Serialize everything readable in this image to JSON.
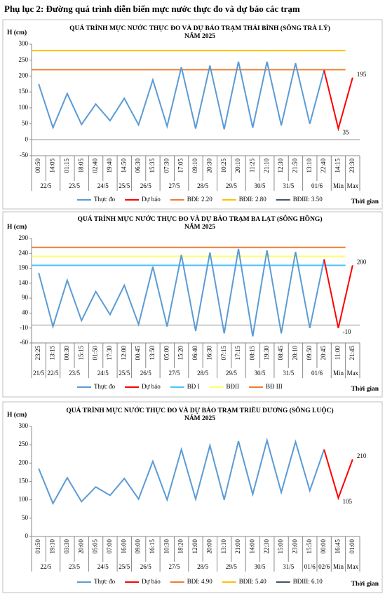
{
  "page_title": "Phụ lục 2: Đường quá trình diễn biến mực nước thực đo và dự báo các trạm",
  "chart_data": [
    {
      "type": "line",
      "title": [
        "QUÁ TRÌNH MỰC NƯỚC THỰC ĐO VÀ DỰ BÁO TRẠM THÁI BÌNH (SÔNG TRÀ LÝ)",
        "NĂM 2025"
      ],
      "y_label": "H (cm)",
      "x_label": "Thời gian",
      "categories": [
        "00:50",
        "14:05",
        "01:15",
        "18:05",
        "02:40",
        "19:40",
        "14:50",
        "06:30",
        "15:35",
        "07:30",
        "17:05",
        "09:10",
        "20:30",
        "10:25",
        "20:10",
        "11:25",
        "21:10",
        "12:30",
        "21:50",
        "13:10",
        "22:40",
        "14:15",
        "23:30"
      ],
      "dates": [
        "22/5",
        null,
        "23/5",
        null,
        "24/5",
        null,
        "25/5",
        "26/5",
        null,
        "27/5",
        null,
        "28/5",
        null,
        "29/5",
        null,
        "30/5",
        null,
        "31/5",
        null,
        "01/6",
        null,
        "Min",
        "Max"
      ],
      "ylim": [
        -50,
        300
      ],
      "yticks": [
        -50,
        0,
        50,
        100,
        150,
        200,
        250,
        300
      ],
      "grid": false,
      "series": [
        {
          "name": "Thực đo",
          "color": "#5b9bd5",
          "values": [
            175,
            38,
            145,
            48,
            112,
            60,
            130,
            47,
            188,
            42,
            228,
            35,
            233,
            33,
            245,
            38,
            245,
            45,
            240,
            50,
            218,
            null,
            null
          ]
        },
        {
          "name": "Dự báo",
          "color": "#ff0000",
          "values": [
            null,
            null,
            null,
            null,
            null,
            null,
            null,
            null,
            null,
            null,
            null,
            null,
            null,
            null,
            null,
            null,
            null,
            null,
            null,
            null,
            218,
            35,
            195
          ],
          "value_labels": [
            null,
            null,
            null,
            null,
            null,
            null,
            null,
            null,
            null,
            null,
            null,
            null,
            null,
            null,
            null,
            null,
            null,
            null,
            null,
            null,
            null,
            "35",
            "195"
          ]
        }
      ],
      "thresholds": [
        {
          "name": "BĐI: 2.20",
          "color": "#ed7d31",
          "value": 220
        },
        {
          "name": "BĐII: 2.80",
          "color": "#ffc000",
          "value": 280
        },
        {
          "name": "BĐIII: 3.50",
          "color": "#44546a",
          "value": 350
        }
      ]
    },
    {
      "type": "line",
      "title": [
        "QUÁ TRÌNH MỰC NƯỚC THỰC ĐO VÀ DỰ BÁO TRẠM BA LẠT (SÔNG HỒNG)",
        "NĂM 2025"
      ],
      "y_label": "H (cm)",
      "x_label": "Thời gian",
      "categories": [
        "23:25",
        "13:15",
        "00:30",
        "15:15",
        "01:50",
        "17:30",
        "12:00",
        "00:45",
        "13:50",
        "05:00",
        "15:20",
        "06:40",
        "16:30",
        "07:15",
        "17:15",
        "08:15",
        "19:30",
        "08:45",
        "20:10",
        "09:50",
        "20:45",
        "11:00",
        "21:45"
      ],
      "dates": [
        "21/5",
        "22/5",
        "23/5",
        null,
        "24/5",
        null,
        "25/5",
        "26/5",
        null,
        "27/5",
        null,
        "28/5",
        null,
        "29/5",
        null,
        "30/5",
        null,
        "31/5",
        null,
        "01/6",
        null,
        "Min",
        "Max"
      ],
      "ylim": [
        -60,
        290
      ],
      "yticks": [
        -60,
        -10,
        40,
        90,
        140,
        190,
        240,
        290
      ],
      "grid": false,
      "series": [
        {
          "name": "Thực đo",
          "color": "#5b9bd5",
          "values": [
            175,
            -5,
            150,
            15,
            112,
            35,
            133,
            2,
            195,
            -5,
            235,
            -20,
            243,
            -28,
            255,
            -38,
            250,
            -28,
            245,
            -10,
            220,
            null,
            null
          ]
        },
        {
          "name": "Dự báo",
          "color": "#ff0000",
          "values": [
            null,
            null,
            null,
            null,
            null,
            null,
            null,
            null,
            null,
            null,
            null,
            null,
            null,
            null,
            null,
            null,
            null,
            null,
            null,
            null,
            220,
            -10,
            200
          ],
          "value_labels": [
            null,
            null,
            null,
            null,
            null,
            null,
            null,
            null,
            null,
            null,
            null,
            null,
            null,
            null,
            null,
            null,
            null,
            null,
            null,
            null,
            null,
            "-10",
            "200"
          ]
        }
      ],
      "thresholds": [
        {
          "name": "BĐ I",
          "color": "#4fc3f7",
          "value": 200
        },
        {
          "name": "BĐII",
          "color": "#ffff66",
          "value": 230
        },
        {
          "name": "BĐ III",
          "color": "#ed7d31",
          "value": 260
        }
      ]
    },
    {
      "type": "line",
      "title": [
        "QUÁ TRÌNH MỰC NƯỚC THỰC ĐO VÀ DỰ BÁO TRẠM TRIỀU DƯƠNG  (SÔNG LUỘC)",
        "NĂM 2025"
      ],
      "y_label": "H (cm)",
      "x_label": "Thời gian",
      "categories": [
        "01:50",
        "19:10",
        "03:30",
        "20:00",
        "05:05",
        "07:00",
        "16:00",
        "09:00",
        "16:15",
        "10:30",
        "18:20",
        "12:00",
        "20:00",
        "13:10",
        "21:00",
        "14:00",
        "22:30",
        "15:00",
        "23:00",
        "15:50",
        "00:00",
        "16:45",
        "01:00"
      ],
      "dates": [
        "22/5",
        null,
        "23/5",
        null,
        "24/5",
        null,
        "25/5",
        "26/5",
        null,
        "27/5",
        null,
        "28/5",
        null,
        "29/5",
        null,
        "30/5",
        null,
        "31/5",
        null,
        "01/6",
        "02/6",
        "Min",
        "Max"
      ],
      "ylim": [
        0,
        300
      ],
      "yticks": [
        0,
        50,
        100,
        150,
        200,
        250,
        300
      ],
      "grid": false,
      "series": [
        {
          "name": "Thực đo",
          "color": "#5b9bd5",
          "values": [
            185,
            90,
            160,
            95,
            135,
            112,
            158,
            102,
            205,
            100,
            237,
            102,
            248,
            100,
            260,
            115,
            262,
            120,
            258,
            125,
            237,
            null,
            null
          ]
        },
        {
          "name": "Dự báo",
          "color": "#ff0000",
          "values": [
            null,
            null,
            null,
            null,
            null,
            null,
            null,
            null,
            null,
            null,
            null,
            null,
            null,
            null,
            null,
            null,
            null,
            null,
            null,
            null,
            237,
            105,
            210
          ],
          "value_labels": [
            null,
            null,
            null,
            null,
            null,
            null,
            null,
            null,
            null,
            null,
            null,
            null,
            null,
            null,
            null,
            null,
            null,
            null,
            null,
            null,
            null,
            "105",
            "210"
          ]
        }
      ],
      "thresholds": [
        {
          "name": "BĐI: 4.90",
          "color": "#ed7d31",
          "value": 490
        },
        {
          "name": "BĐII: 5.40",
          "color": "#ffc000",
          "value": 540
        },
        {
          "name": "BĐIII: 6.10",
          "color": "#44546a",
          "value": 610
        }
      ]
    }
  ]
}
